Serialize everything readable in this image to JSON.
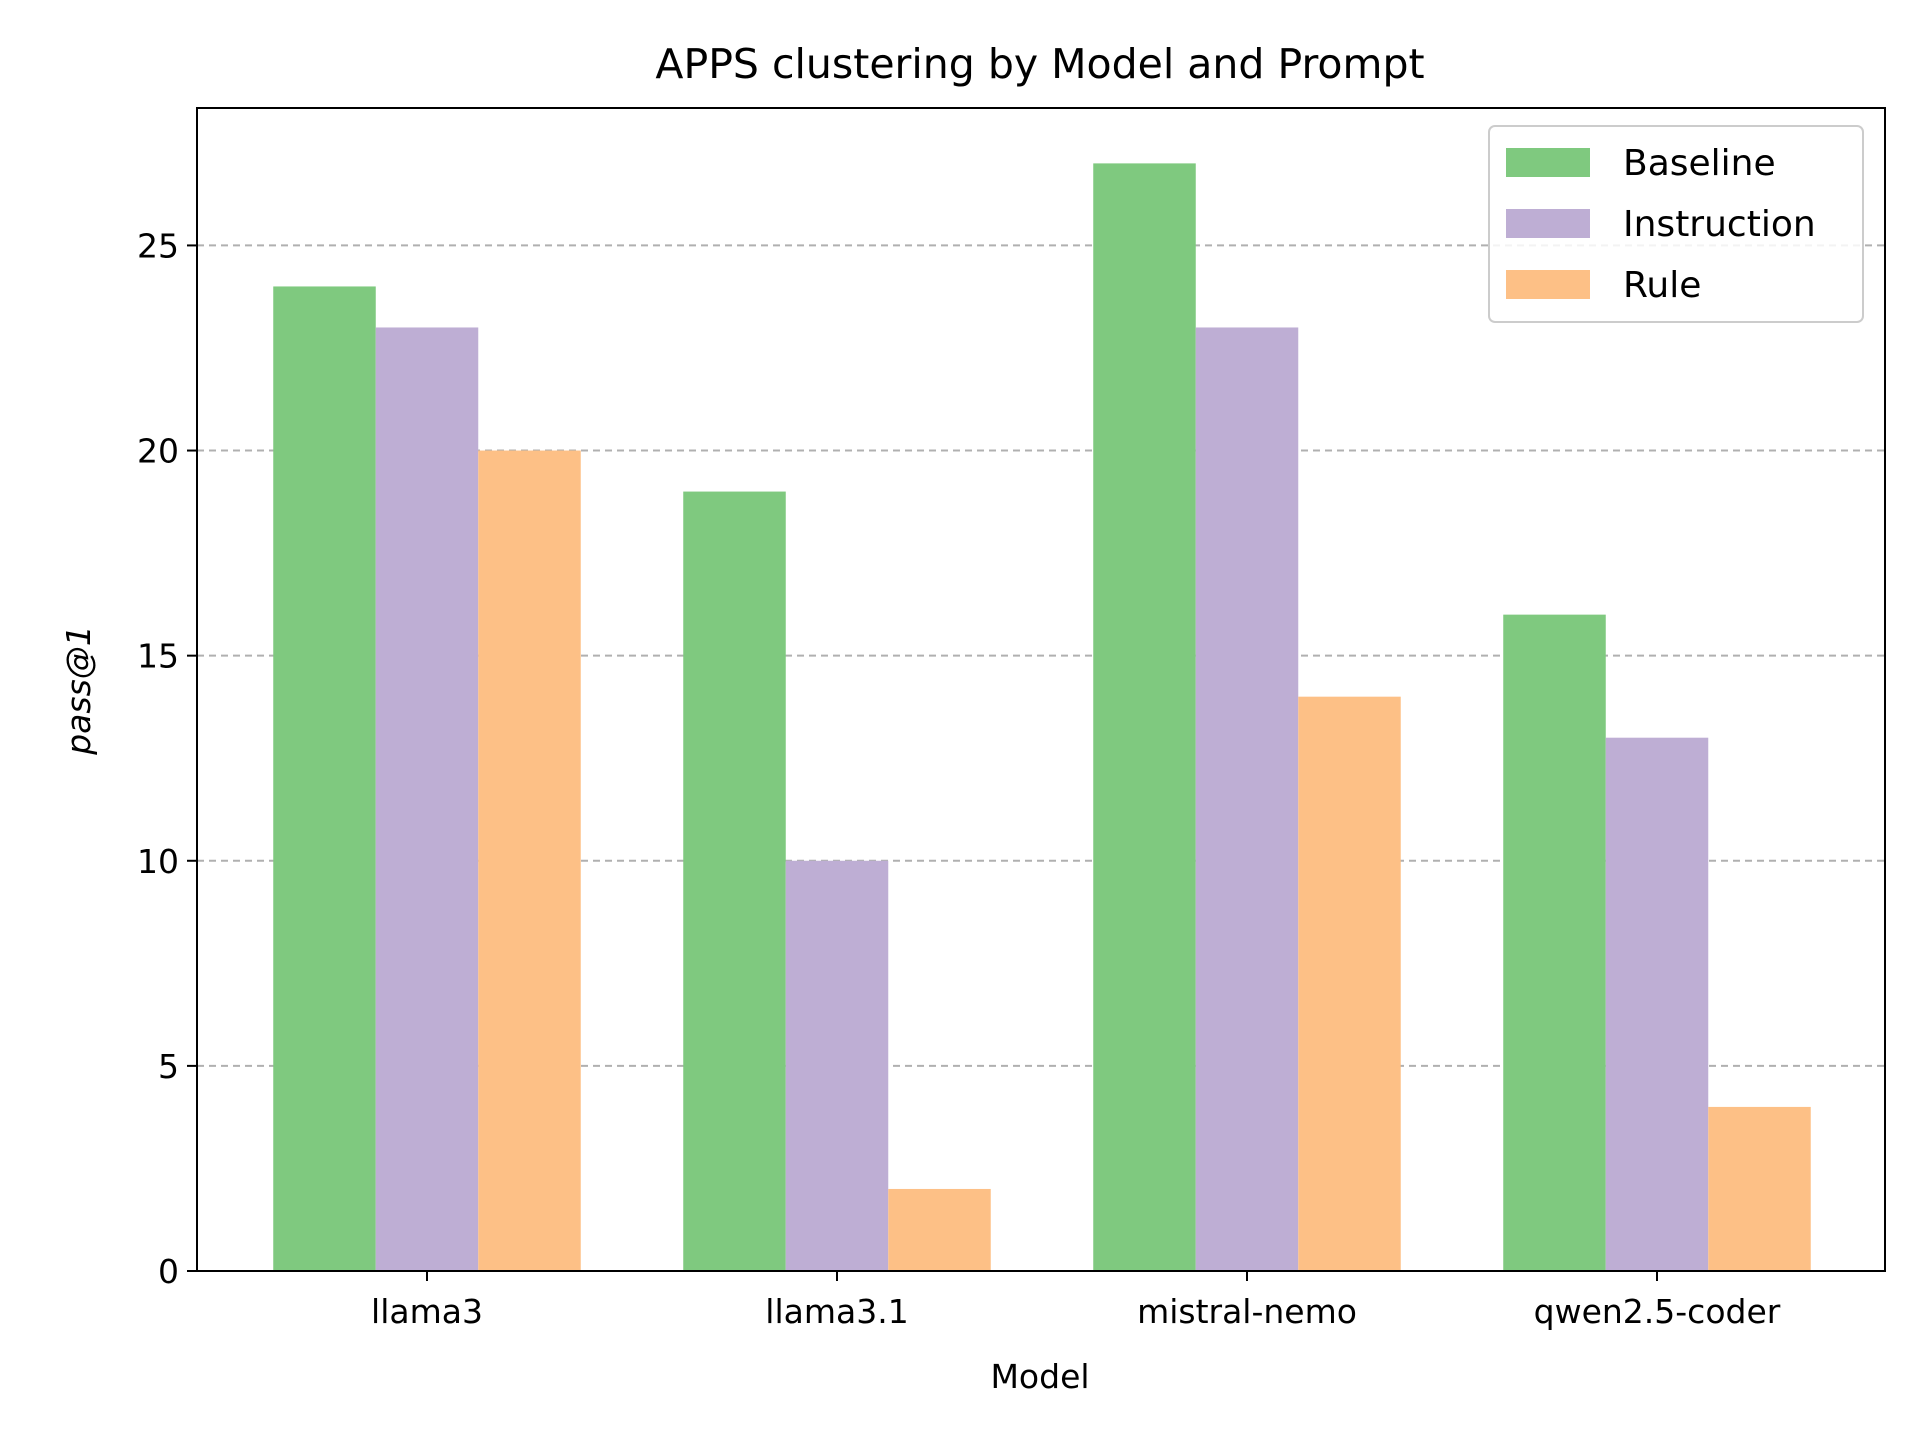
{
  "chart_data": {
    "type": "bar",
    "title": "APPS clustering by Model and Prompt",
    "xlabel": "Model",
    "ylabel": "pass@1",
    "categories": [
      "llama3",
      "llama3.1",
      "mistral-nemo",
      "qwen2.5-coder"
    ],
    "series": [
      {
        "name": "Baseline",
        "color": "#7fc97f",
        "values": [
          24,
          19,
          27,
          16
        ]
      },
      {
        "name": "Instruction",
        "color": "#beaed4",
        "values": [
          23,
          10,
          23,
          13
        ]
      },
      {
        "name": "Rule",
        "color": "#fdc086",
        "values": [
          20,
          2,
          14,
          4
        ]
      }
    ],
    "ylim": [
      0,
      28.35
    ],
    "yticks": [
      0,
      5,
      10,
      15,
      20,
      25
    ],
    "grid": "y-dashed",
    "legend_position": "top-right"
  }
}
